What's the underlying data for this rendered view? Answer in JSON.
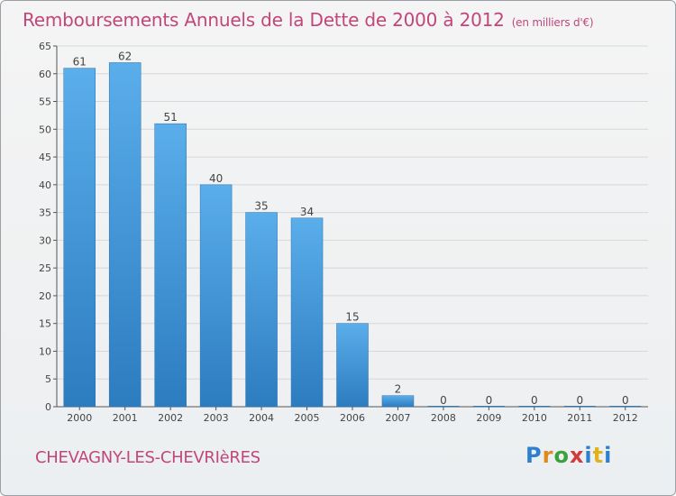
{
  "title": "Remboursements Annuels de la Dette de 2000 à 2012",
  "unit_label": "(en milliers d'€)",
  "commune": "CHEVAGNY-LES-CHEVRIèRES",
  "logo_text": "Proxiti",
  "colors": {
    "bar_top": "#5aaeea",
    "bar_bottom": "#2c7cc0",
    "title": "#c0477a"
  },
  "chart_data": {
    "type": "bar",
    "title": "Remboursements Annuels de la Dette de 2000 à 2012",
    "xlabel": "",
    "ylabel": "",
    "ylim": [
      0,
      65
    ],
    "yticks": [
      0,
      5,
      10,
      15,
      20,
      25,
      30,
      35,
      40,
      45,
      50,
      55,
      60,
      65
    ],
    "grid": true,
    "categories": [
      "2000",
      "2001",
      "2002",
      "2003",
      "2004",
      "2005",
      "2006",
      "2007",
      "2008",
      "2009",
      "2010",
      "2011",
      "2012"
    ],
    "values": [
      61,
      62,
      51,
      40,
      35,
      34,
      15,
      2,
      0,
      0,
      0,
      0,
      0
    ]
  }
}
